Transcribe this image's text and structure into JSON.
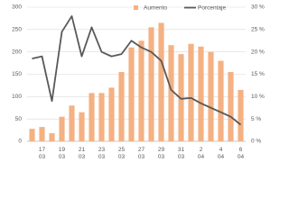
{
  "chart_data": {
    "type": "bar",
    "categories": [
      null,
      [
        "17",
        "03"
      ],
      null,
      [
        "19",
        "03"
      ],
      null,
      [
        "21",
        "03"
      ],
      null,
      [
        "23",
        "03"
      ],
      null,
      [
        "25",
        "03"
      ],
      null,
      [
        "27",
        "03"
      ],
      null,
      [
        "29",
        "03"
      ],
      null,
      [
        "31",
        "03"
      ],
      null,
      [
        "2",
        "04"
      ],
      null,
      [
        "4",
        "04"
      ],
      null,
      [
        "6",
        "04"
      ]
    ],
    "series": [
      {
        "name": "Aumento",
        "type": "bar",
        "color": "#f4b183",
        "values": [
          28,
          32,
          18,
          55,
          80,
          65,
          108,
          108,
          120,
          155,
          210,
          225,
          255,
          265,
          215,
          195,
          218,
          212,
          200,
          180,
          155,
          115
        ]
      },
      {
        "name": "Porcentaje",
        "type": "line",
        "axis": "y2",
        "color": "#595959",
        "values": [
          18.5,
          19,
          9,
          24.5,
          28,
          19,
          25.5,
          20,
          19,
          19.5,
          22.5,
          21,
          20,
          18,
          11.5,
          9.5,
          9.7,
          8.5,
          7.5,
          6.5,
          5.5,
          3.7
        ]
      }
    ],
    "ylim": [
      0,
      300
    ],
    "yticks": [
      0,
      50,
      100,
      150,
      200,
      250,
      300
    ],
    "y2lim": [
      0,
      30
    ],
    "y2ticks": [
      {
        "value": 0,
        "label": "0 %"
      },
      {
        "value": 5,
        "label": "5 %"
      },
      {
        "value": 10,
        "label": "10 %"
      },
      {
        "value": 15,
        "label": "15 %"
      },
      {
        "value": 20,
        "label": "20 %"
      },
      {
        "value": 25,
        "label": "25 %"
      },
      {
        "value": 30,
        "label": "30 %"
      }
    ],
    "grid": true,
    "legend": "top"
  }
}
